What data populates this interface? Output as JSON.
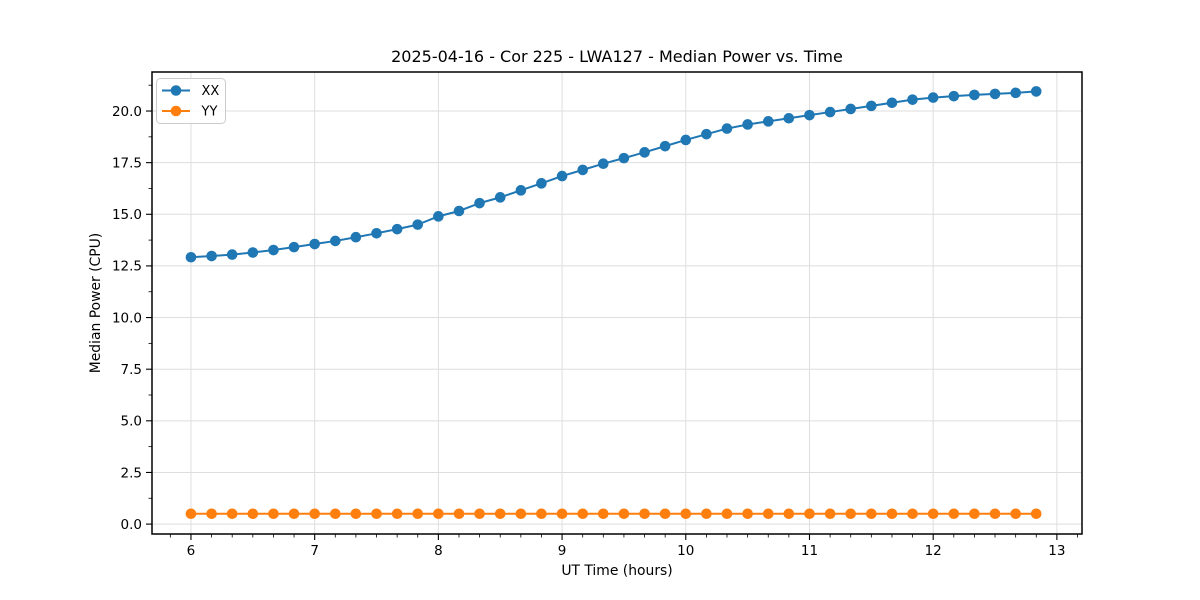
{
  "chart_data": {
    "type": "line",
    "title": "2025-04-16 - Cor 225 - LWA127 - Median Power vs. Time",
    "xlabel": "UT Time (hours)",
    "ylabel": "Median Power (CPU)",
    "xlim": [
      5.685,
      13.203
    ],
    "ylim": [
      -0.48,
      21.89
    ],
    "xticks": [
      6,
      7,
      8,
      9,
      10,
      11,
      12,
      13
    ],
    "yticks": [
      0.0,
      2.5,
      5.0,
      7.5,
      10.0,
      12.5,
      15.0,
      17.5,
      20.0
    ],
    "x_minor_step": 0.1666667,
    "y_minor_step": 1.25,
    "grid": true,
    "grid_color": "#dedede",
    "spine_color": "#000000",
    "legend_position": "upper left",
    "x": [
      6.0,
      6.167,
      6.333,
      6.5,
      6.667,
      6.833,
      7.0,
      7.167,
      7.333,
      7.5,
      7.667,
      7.833,
      8.0,
      8.167,
      8.333,
      8.5,
      8.667,
      8.833,
      9.0,
      9.167,
      9.333,
      9.5,
      9.667,
      9.833,
      10.0,
      10.167,
      10.333,
      10.5,
      10.667,
      10.833,
      11.0,
      11.167,
      11.333,
      11.5,
      11.667,
      11.833,
      12.0,
      12.167,
      12.333,
      12.5,
      12.667,
      12.833
    ],
    "series": [
      {
        "name": "XX",
        "color": "#1f77b4",
        "values": [
          12.92,
          12.98,
          13.05,
          13.15,
          13.27,
          13.41,
          13.56,
          13.71,
          13.89,
          14.08,
          14.28,
          14.5,
          14.9,
          15.16,
          15.54,
          15.82,
          16.16,
          16.5,
          16.85,
          17.15,
          17.45,
          17.72,
          18.0,
          18.3,
          18.6,
          18.88,
          19.15,
          19.35,
          19.5,
          19.65,
          19.8,
          19.95,
          20.1,
          20.25,
          20.4,
          20.55,
          20.65,
          20.72,
          20.78,
          20.83,
          20.88,
          20.95
        ]
      },
      {
        "name": "YY",
        "color": "#ff7f0e",
        "values": [
          0.5,
          0.5,
          0.5,
          0.5,
          0.5,
          0.5,
          0.5,
          0.5,
          0.5,
          0.5,
          0.5,
          0.5,
          0.5,
          0.5,
          0.5,
          0.5,
          0.5,
          0.5,
          0.5,
          0.5,
          0.5,
          0.5,
          0.5,
          0.5,
          0.5,
          0.5,
          0.5,
          0.5,
          0.5,
          0.5,
          0.5,
          0.5,
          0.5,
          0.5,
          0.5,
          0.5,
          0.5,
          0.5,
          0.5,
          0.5,
          0.5,
          0.5
        ]
      }
    ]
  }
}
